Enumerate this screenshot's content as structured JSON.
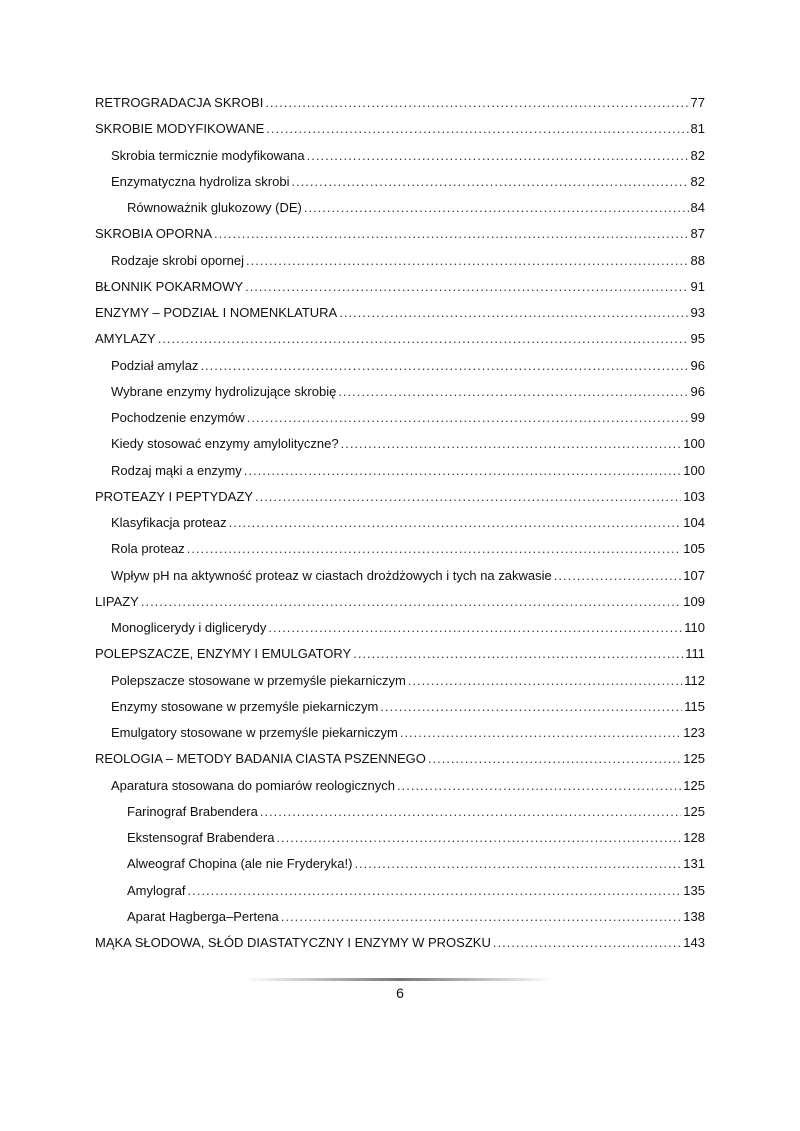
{
  "toc": [
    {
      "title": "RETROGRADACJA SKROBI",
      "page": "77",
      "level": 0
    },
    {
      "title": "SKROBIE MODYFIKOWANE",
      "page": "81",
      "level": 0
    },
    {
      "title": "Skrobia termicznie modyfikowana",
      "page": "82",
      "level": 1
    },
    {
      "title": "Enzymatyczna hydroliza skrobi",
      "page": "82",
      "level": 1
    },
    {
      "title": "Równoważnik glukozowy (DE)",
      "page": "84",
      "level": 2
    },
    {
      "title": "SKROBIA OPORNA",
      "page": "87",
      "level": 0
    },
    {
      "title": "Rodzaje skrobi opornej",
      "page": "88",
      "level": 1
    },
    {
      "title": "BŁONNIK POKARMOWY",
      "page": "91",
      "level": 0
    },
    {
      "title": "ENZYMY – PODZIAŁ I NOMENKLATURA",
      "page": "93",
      "level": 0
    },
    {
      "title": "AMYLAZY",
      "page": "95",
      "level": 0
    },
    {
      "title": "Podział amylaz",
      "page": "96",
      "level": 1
    },
    {
      "title": "Wybrane enzymy hydrolizujące skrobię",
      "page": "96",
      "level": 1
    },
    {
      "title": "Pochodzenie enzymów",
      "page": "99",
      "level": 1
    },
    {
      "title": "Kiedy stosować enzymy amylolityczne?",
      "page": "100",
      "level": 1
    },
    {
      "title": "Rodzaj mąki a enzymy",
      "page": "100",
      "level": 1
    },
    {
      "title": "PROTEAZY I PEPTYDAZY",
      "page": "103",
      "level": 0
    },
    {
      "title": "Klasyfikacja proteaz",
      "page": "104",
      "level": 1
    },
    {
      "title": "Rola proteaz",
      "page": "105",
      "level": 1
    },
    {
      "title": "Wpływ pH na aktywność proteaz w ciastach drożdżowych i tych na zakwasie",
      "page": "107",
      "level": 1
    },
    {
      "title": "LIPAZY",
      "page": "109",
      "level": 0
    },
    {
      "title": "Monoglicerydy i diglicerydy",
      "page": "110",
      "level": 1
    },
    {
      "title": "POLEPSZACZE, ENZYMY I EMULGATORY",
      "page": "111",
      "level": 0
    },
    {
      "title": "Polepszacze stosowane w przemyśle piekarniczym",
      "page": "112",
      "level": 1
    },
    {
      "title": "Enzymy stosowane w przemyśle piekarniczym",
      "page": "115",
      "level": 1
    },
    {
      "title": "Emulgatory stosowane w przemyśle piekarniczym",
      "page": "123",
      "level": 1
    },
    {
      "title": "REOLOGIA – METODY BADANIA CIASTA PSZENNEGO",
      "page": "125",
      "level": 0
    },
    {
      "title": "Aparatura stosowana do pomiarów reologicznych",
      "page": "125",
      "level": 1
    },
    {
      "title": "Farinograf Brabendera",
      "page": "125",
      "level": 2
    },
    {
      "title": "Ekstensograf Brabendera",
      "page": "128",
      "level": 2
    },
    {
      "title": "Alweograf Chopina (ale nie Fryderyka!)",
      "page": "131",
      "level": 2
    },
    {
      "title": "Amylograf",
      "page": "135",
      "level": 2
    },
    {
      "title": "Aparat Hagberga–Pertena",
      "page": "138",
      "level": 2
    },
    {
      "title": "MĄKA SŁODOWA, SŁÓD DIASTATYCZNY I ENZYMY W PROSZKU",
      "page": "143",
      "level": 0
    }
  ],
  "footer": {
    "page_number": "6"
  }
}
